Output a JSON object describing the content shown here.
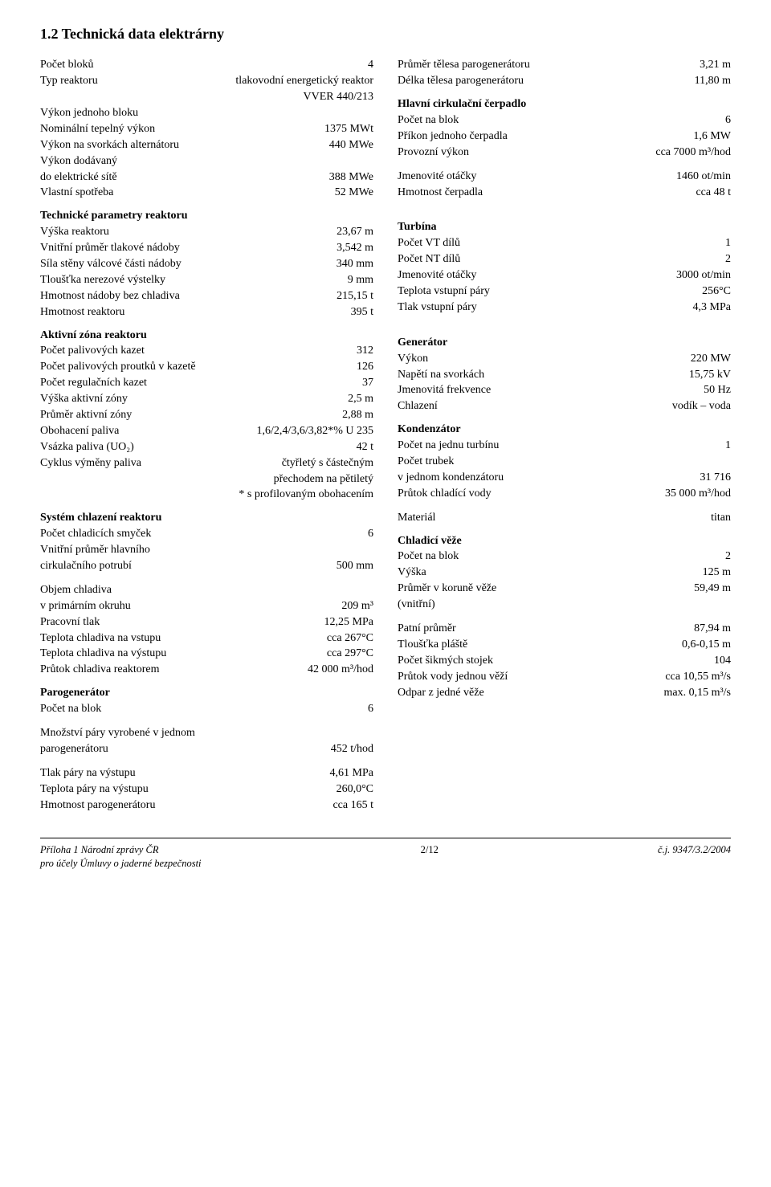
{
  "section": {
    "title": "1.2   Technická data elektrárny"
  },
  "left": {
    "rows1": [
      {
        "label": "Počet bloků",
        "value": "4"
      },
      {
        "label": "Typ reaktoru",
        "value": "tlakovodní energetický reaktor"
      },
      {
        "label": "",
        "value": "VVER 440/213"
      },
      {
        "label": "Výkon jednoho bloku",
        "value": ""
      },
      {
        "label": "Nominální tepelný výkon",
        "value": "1375  MWt"
      },
      {
        "label": "Výkon na svorkách alternátoru",
        "value": "440  MWe"
      },
      {
        "label": "Výkon dodávaný",
        "value": ""
      },
      {
        "label": "do elektrické sítě",
        "value": "388  MWe"
      },
      {
        "label": "Vlastní spotřeba",
        "value": "52  MWe"
      }
    ],
    "g_reactor": {
      "title": "Technické parametry reaktoru",
      "rows": [
        {
          "label": "Výška reaktoru",
          "value": "23,67  m"
        },
        {
          "label": "Vnitřní průměr tlakové nádoby",
          "value": "3,542  m"
        },
        {
          "label": "Síla stěny válcové části nádoby",
          "value": "340  mm"
        },
        {
          "label": "Tloušťka nerezové výstelky",
          "value": "9  mm"
        },
        {
          "label": "Hmotnost nádoby bez chladiva",
          "value": "215,15  t"
        },
        {
          "label": "Hmotnost reaktoru",
          "value": "395 t"
        }
      ]
    },
    "g_active": {
      "title": "Aktivní zóna reaktoru",
      "rows": [
        {
          "label": "Počet palivových kazet",
          "value": "312"
        },
        {
          "label": "Počet palivových proutků v kazetě",
          "value": "126"
        },
        {
          "label": "Počet regulačních kazet",
          "value": "37"
        },
        {
          "label": "Výška aktivní zóny",
          "value": "2,5  m"
        },
        {
          "label": "Průměr aktivní zóny",
          "value": "2,88  m"
        },
        {
          "label": "Obohacení paliva",
          "value": "1,6/2,4/3,6/3,82*% U 235"
        },
        {
          "label": "Vsázka paliva (UO₂)",
          "value": "42 t"
        },
        {
          "label": "Cyklus výměny paliva",
          "value": "čtyřletý s částečným"
        },
        {
          "label": "",
          "value": "přechodem na pětiletý"
        }
      ],
      "note": "* s profilovaným obohacením"
    },
    "g_cooling": {
      "title": "Systém chlazení reaktoru",
      "rows": [
        {
          "label": "Počet chladicích smyček",
          "value": "6"
        },
        {
          "label": "Vnitřní průměr hlavního",
          "value": ""
        },
        {
          "label": "cirkulačního potrubí",
          "value": "500  mm"
        }
      ]
    },
    "g_coolant2": {
      "rows": [
        {
          "label": "Objem chladiva",
          "value": ""
        },
        {
          "label": "v primárním okruhu",
          "value": "209 m³"
        },
        {
          "label": "Pracovní tlak",
          "value": "12,25 MPa"
        },
        {
          "label": "Teplota chladiva na vstupu",
          "value": "cca 267°C"
        },
        {
          "label": "Teplota chladiva na výstupu",
          "value": "cca 297°C"
        },
        {
          "label": "Průtok chladiva reaktorem",
          "value": "42 000 m³/hod"
        }
      ]
    },
    "g_paro": {
      "title": "Parogenerátor",
      "rows": [
        {
          "label": "Počet na blok",
          "value": "6"
        }
      ]
    },
    "g_paro2": {
      "rows": [
        {
          "label": "Množství páry vyrobené v jednom",
          "value": ""
        },
        {
          "label": "parogenerátoru",
          "value": "452 t/hod"
        }
      ]
    },
    "g_paro3": {
      "rows": [
        {
          "label": "Tlak páry na výstupu",
          "value": "4,61 MPa"
        },
        {
          "label": "Teplota páry na výstupu",
          "value": "260,0°C"
        },
        {
          "label": "Hmotnost parogenerátoru",
          "value": "cca 165 t"
        }
      ]
    }
  },
  "right": {
    "rows1": [
      {
        "label": "Průměr tělesa parogenerátoru",
        "value": "3,21 m"
      },
      {
        "label": "Délka tělesa parogenerátoru",
        "value": "11,80 m"
      }
    ],
    "g_pump": {
      "title": "Hlavní cirkulační čerpadlo",
      "rows": [
        {
          "label": "Počet na blok",
          "value": "6"
        },
        {
          "label": "Příkon jednoho čerpadla",
          "value": "1,6 MW"
        },
        {
          "label": "Provozní výkon",
          "value": "cca  7000  m³/hod"
        }
      ]
    },
    "g_pump2": {
      "rows": [
        {
          "label": "Jmenovité otáčky",
          "value": "1460 ot/min"
        },
        {
          "label": "Hmotnost čerpadla",
          "value": "cca 48 t"
        }
      ]
    },
    "g_turbine": {
      "title": "Turbína",
      "rows": [
        {
          "label": "Počet VT dílů",
          "value": "1"
        },
        {
          "label": "Počet NT dílů",
          "value": "2"
        },
        {
          "label": "Jmenovité otáčky",
          "value": "3000 ot/min"
        },
        {
          "label": "Teplota vstupní páry",
          "value": "256°C"
        },
        {
          "label": "Tlak vstupní páry",
          "value": "4,3 MPa"
        }
      ]
    },
    "g_gen": {
      "title": "Generátor",
      "rows": [
        {
          "label": "Výkon",
          "value": "220  MW"
        },
        {
          "label": "Napětí na svorkách",
          "value": "15,75 kV"
        },
        {
          "label": "Jmenovitá frekvence",
          "value": "50 Hz"
        },
        {
          "label": "Chlazení",
          "value": "vodík – voda"
        }
      ]
    },
    "g_cond": {
      "title": "Kondenzátor",
      "rows": [
        {
          "label": "Počet na jednu turbínu",
          "value": "1"
        },
        {
          "label": "Počet trubek",
          "value": ""
        },
        {
          "label": "v jednom kondenzátoru",
          "value": "31 716"
        },
        {
          "label": "Průtok chladící vody",
          "value": "35 000 m³/hod"
        }
      ]
    },
    "g_cond2": {
      "rows": [
        {
          "label": "Materiál",
          "value": "titan"
        }
      ]
    },
    "g_towers": {
      "title": "Chladicí věže",
      "rows": [
        {
          "label": "Počet na blok",
          "value": "2"
        },
        {
          "label": "Výška",
          "value": "125  m"
        },
        {
          "label": "Průměr v koruně věže",
          "value": "59,49  m"
        },
        {
          "label": "(vnitřní)",
          "value": ""
        }
      ]
    },
    "g_towers2": {
      "rows": [
        {
          "label": "Patní průměr",
          "value": "87,94 m"
        },
        {
          "label": "Tloušťka pláště",
          "value": "0,6-0,15  m"
        },
        {
          "label": "Počet šikmých stojek",
          "value": "104"
        },
        {
          "label": "Průtok vody jednou věží",
          "value": "cca 10,55 m³/s"
        },
        {
          "label": "Odpar z jedné věže",
          "value": "max.  0,15  m³/s"
        }
      ]
    }
  },
  "footer": {
    "left1": "Příloha 1 Národní zprávy ČR",
    "left2": "pro účely Úmluvy o jaderné bezpečnosti",
    "center": "2/12",
    "right": "č.j. 9347/3.2/2004"
  }
}
